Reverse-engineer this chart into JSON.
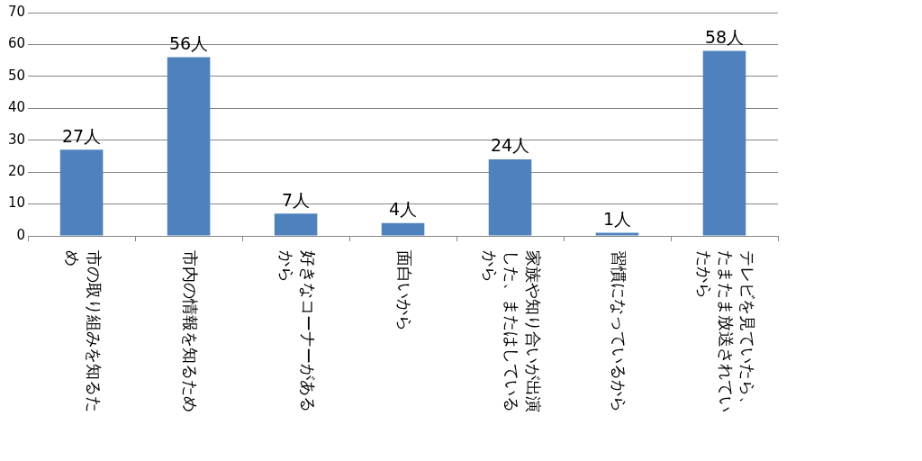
{
  "chart_data": {
    "type": "bar",
    "categories": [
      "市の取り組みを知るため",
      "市内の情報を知るため",
      "好きなコーナーがあるから",
      "面白いから",
      "家族や知り合いが出演した、またはしているから",
      "習慣になっているから",
      "テレビを見ていたら、たまたま放送されていたから"
    ],
    "values": [
      27,
      56,
      7,
      4,
      24,
      1,
      58
    ],
    "value_labels": [
      "27人",
      "56人",
      "7人",
      "4人",
      "24人",
      "1人",
      "58人"
    ],
    "color": "#4f81bd",
    "ylim": [
      0,
      70
    ],
    "yticks": [
      0,
      10,
      20,
      30,
      40,
      50,
      60,
      70
    ],
    "grid": "y",
    "legend": false
  }
}
